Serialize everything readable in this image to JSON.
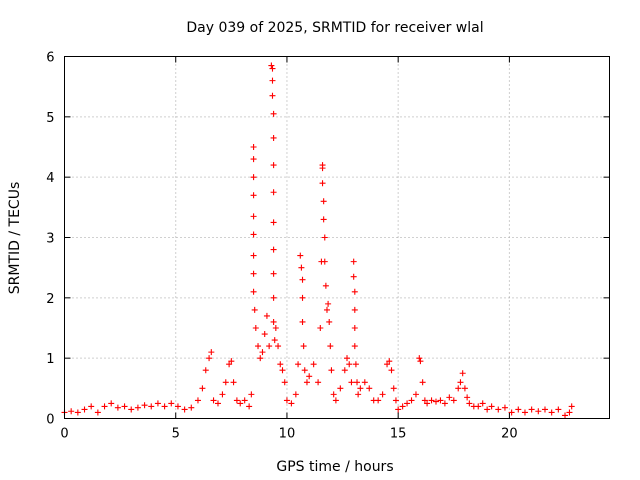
{
  "chart_data": {
    "type": "scatter",
    "title": "Day 039 of 2025, SRMTID for receiver wlal",
    "xlabel": "GPS time / hours",
    "ylabel": "SRMTID / TECUs",
    "xlim": [
      0,
      24.5
    ],
    "ylim": [
      0,
      6
    ],
    "xticks": [
      0,
      5,
      10,
      15,
      20
    ],
    "yticks": [
      0,
      1,
      2,
      3,
      4,
      5,
      6
    ],
    "grid": true,
    "marker": "plus",
    "series": [
      {
        "name": "SRMTID",
        "color": "#ff0000",
        "x": [
          0.0,
          0.3,
          0.6,
          0.9,
          1.2,
          1.5,
          1.8,
          2.1,
          2.4,
          2.7,
          3.0,
          3.3,
          3.6,
          3.9,
          4.2,
          4.5,
          4.8,
          5.1,
          5.4,
          5.7,
          6.0,
          6.2,
          6.35,
          6.5,
          6.6,
          6.7,
          6.9,
          7.1,
          7.25,
          7.4,
          7.5,
          7.6,
          7.75,
          7.9,
          8.1,
          8.3,
          8.4,
          8.5,
          8.5,
          8.5,
          8.5,
          8.5,
          8.5,
          8.5,
          8.5,
          8.5,
          8.55,
          8.6,
          8.7,
          8.8,
          8.9,
          9.0,
          9.1,
          9.2,
          9.3,
          9.35,
          9.35,
          9.35,
          9.4,
          9.4,
          9.4,
          9.4,
          9.4,
          9.4,
          9.4,
          9.4,
          9.4,
          9.45,
          9.5,
          9.6,
          9.7,
          9.8,
          9.9,
          10.0,
          10.2,
          10.4,
          10.5,
          10.6,
          10.65,
          10.7,
          10.7,
          10.7,
          10.75,
          10.8,
          10.9,
          11.0,
          11.2,
          11.4,
          11.5,
          11.55,
          11.6,
          11.6,
          11.6,
          11.65,
          11.65,
          11.7,
          11.7,
          11.75,
          11.8,
          11.85,
          11.9,
          11.95,
          12.0,
          12.1,
          12.2,
          12.4,
          12.6,
          12.7,
          12.8,
          12.9,
          13.0,
          13.0,
          13.05,
          13.05,
          13.05,
          13.05,
          13.1,
          13.15,
          13.2,
          13.3,
          13.5,
          13.7,
          13.9,
          14.1,
          14.3,
          14.5,
          14.6,
          14.7,
          14.8,
          14.9,
          15.0,
          15.2,
          15.4,
          15.6,
          15.8,
          15.95,
          16.0,
          16.1,
          16.2,
          16.3,
          16.5,
          16.7,
          16.9,
          17.1,
          17.3,
          17.5,
          17.7,
          17.8,
          17.9,
          18.0,
          18.1,
          18.2,
          18.4,
          18.6,
          18.8,
          19.0,
          19.2,
          19.5,
          19.8,
          20.1,
          20.4,
          20.7,
          21.0,
          21.3,
          21.6,
          21.9,
          22.2,
          22.5,
          22.7,
          22.8
        ],
        "y": [
          0.1,
          0.12,
          0.1,
          0.15,
          0.2,
          0.1,
          0.2,
          0.25,
          0.18,
          0.2,
          0.15,
          0.18,
          0.22,
          0.2,
          0.25,
          0.2,
          0.25,
          0.2,
          0.15,
          0.18,
          0.3,
          0.5,
          0.8,
          1.0,
          1.1,
          0.3,
          0.25,
          0.4,
          0.6,
          0.9,
          0.95,
          0.6,
          0.3,
          0.25,
          0.3,
          0.2,
          0.4,
          4.5,
          4.3,
          4.0,
          3.7,
          3.35,
          3.05,
          2.7,
          2.4,
          2.1,
          1.8,
          1.5,
          1.2,
          1.0,
          1.1,
          1.4,
          1.7,
          1.2,
          5.85,
          5.8,
          5.6,
          5.35,
          5.05,
          4.65,
          4.2,
          3.75,
          3.25,
          2.8,
          2.4,
          2.0,
          1.6,
          1.3,
          1.5,
          1.2,
          0.9,
          0.8,
          0.6,
          0.3,
          0.25,
          0.4,
          0.9,
          2.7,
          2.5,
          2.3,
          2.0,
          1.6,
          1.2,
          0.8,
          0.6,
          0.7,
          0.9,
          0.6,
          1.5,
          2.6,
          4.2,
          4.15,
          3.9,
          3.6,
          3.3,
          3.0,
          2.6,
          2.2,
          1.8,
          1.9,
          1.6,
          1.2,
          0.8,
          0.4,
          0.3,
          0.5,
          0.8,
          1.0,
          0.9,
          0.6,
          2.6,
          2.35,
          2.1,
          1.8,
          1.5,
          1.2,
          0.9,
          0.6,
          0.4,
          0.5,
          0.6,
          0.5,
          0.3,
          0.3,
          0.4,
          0.9,
          0.95,
          0.8,
          0.5,
          0.3,
          0.15,
          0.2,
          0.25,
          0.3,
          0.4,
          1.0,
          0.95,
          0.6,
          0.3,
          0.25,
          0.3,
          0.28,
          0.3,
          0.25,
          0.35,
          0.3,
          0.5,
          0.6,
          0.75,
          0.5,
          0.35,
          0.25,
          0.2,
          0.2,
          0.25,
          0.15,
          0.2,
          0.15,
          0.18,
          0.1,
          0.15,
          0.1,
          0.15,
          0.12,
          0.15,
          0.1,
          0.15,
          0.05,
          0.1,
          0.2
        ]
      }
    ]
  }
}
